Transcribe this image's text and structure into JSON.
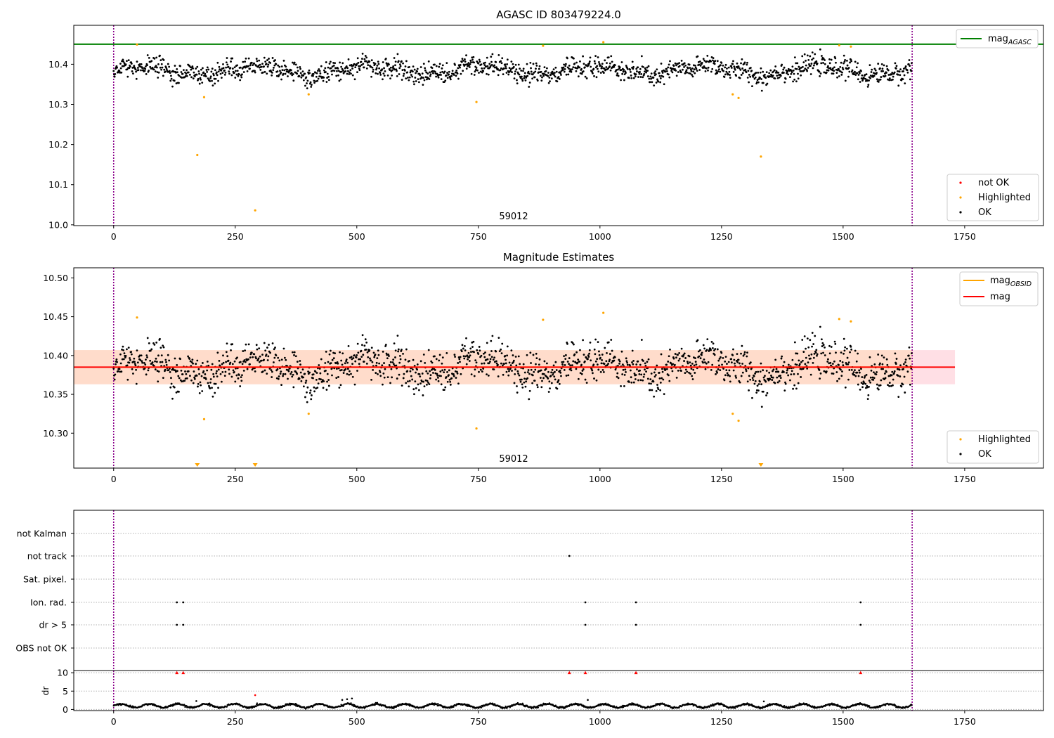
{
  "chart_data": [
    {
      "id": "agasc",
      "type": "scatter",
      "title": "AGASC ID 803479224.0",
      "xlim": [
        -82,
        1912
      ],
      "ylim": [
        9.998,
        10.497
      ],
      "xticks": [
        0,
        250,
        500,
        750,
        1000,
        1250,
        1500,
        1750
      ],
      "yticks": [
        10.0,
        10.1,
        10.2,
        10.3,
        10.4
      ],
      "ytick_labels": [
        "10.0",
        "10.1",
        "10.2",
        "10.3",
        "10.4"
      ],
      "vlines_x": [
        0,
        1642
      ],
      "vline_color": "#8b008b",
      "hline": {
        "y": 10.45,
        "color": "#008000",
        "label": "mag",
        "label_sub": "AGASC"
      },
      "annotation": {
        "text": "59012",
        "x": 821,
        "y": 10.018
      },
      "legend_upper": [
        {
          "label": "mag",
          "sub": "AGASC",
          "color": "#008000",
          "kind": "line"
        }
      ],
      "legend_lower": [
        {
          "label": "not OK",
          "color": "#ff0000",
          "kind": "dot"
        },
        {
          "label": "Highlighted",
          "color": "#ffa500",
          "kind": "dot"
        },
        {
          "label": "OK",
          "color": "#000000",
          "kind": "dot"
        }
      ],
      "series": {
        "ok": {
          "color": "#000000",
          "x_range": [
            0,
            1642
          ],
          "n": 1642,
          "center": 10.385,
          "spread": 0.022
        },
        "highlighted": {
          "color": "#ffa500",
          "x": [
            48,
            172,
            186,
            291,
            401,
            746,
            883,
            1007,
            1273,
            1285,
            1331,
            1492,
            1516
          ],
          "y": [
            10.449,
            10.174,
            10.318,
            10.036,
            10.325,
            10.306,
            10.446,
            10.455,
            10.325,
            10.316,
            10.17,
            10.447,
            10.444
          ]
        }
      }
    },
    {
      "id": "mag-estimates",
      "type": "scatter",
      "title": "Magnitude Estimates",
      "xlim": [
        -82,
        1912
      ],
      "ylim": [
        10.255,
        10.513
      ],
      "xticks": [
        0,
        250,
        500,
        750,
        1000,
        1250,
        1500,
        1750
      ],
      "yticks": [
        10.3,
        10.35,
        10.4,
        10.45,
        10.5
      ],
      "ytick_labels": [
        "10.30",
        "10.35",
        "10.40",
        "10.45",
        "10.50"
      ],
      "vlines_x": [
        0,
        1642
      ],
      "vline_color": "#8b008b",
      "mag_line": {
        "y": 10.385,
        "color": "#ff0000",
        "label": "mag"
      },
      "mag_band": {
        "y0": 10.363,
        "y1": 10.407,
        "x0": -82,
        "x1": 1730,
        "color": "#ffc0cb"
      },
      "obsid_band": {
        "y0": 10.363,
        "y1": 10.407,
        "x0": -82,
        "x1": 1642,
        "color": "#ffdab9"
      },
      "obsid_line": {
        "y": 10.385,
        "x0": 0,
        "x1": 1642,
        "color": "#ffa500",
        "label": "mag",
        "label_sub": "OBSID"
      },
      "annotation": {
        "text": "59012",
        "x": 821,
        "y": 10.265
      },
      "legend_upper": [
        {
          "label": "mag",
          "sub": "OBSID",
          "color": "#ffa500",
          "kind": "line"
        },
        {
          "label": "mag",
          "color": "#ff0000",
          "kind": "line"
        }
      ],
      "legend_lower": [
        {
          "label": "Highlighted",
          "color": "#ffa500",
          "kind": "dot"
        },
        {
          "label": "OK",
          "color": "#000000",
          "kind": "dot"
        }
      ],
      "series": {
        "ok": {
          "color": "#000000",
          "x_range": [
            0,
            1642
          ],
          "n": 1642,
          "center": 10.385,
          "spread": 0.022
        },
        "highlighted": {
          "color": "#ffa500",
          "x": [
            48,
            186,
            401,
            746,
            883,
            1007,
            1273,
            1285,
            1492,
            1516
          ],
          "y": [
            10.449,
            10.318,
            10.325,
            10.306,
            10.446,
            10.455,
            10.325,
            10.316,
            10.447,
            10.444
          ]
        },
        "off_scale": {
          "color": "#ffa500",
          "marker": "triangle-down",
          "x": [
            172,
            291,
            1331
          ]
        }
      }
    },
    {
      "id": "flags",
      "type": "scatter",
      "title": "",
      "xlim": [
        -82,
        1912
      ],
      "categories": [
        "not Kalman",
        "not track",
        "Sat. pixel.",
        "Ion. rad.",
        "dr > 5",
        "OBS not OK"
      ],
      "flag_points": [
        {
          "category": "not track",
          "x": [
            937
          ]
        },
        {
          "category": "Ion. rad.",
          "x": [
            130,
            143,
            970,
            1074,
            1536
          ]
        },
        {
          "category": "dr > 5",
          "x": [
            130,
            143,
            970,
            1074,
            1536
          ]
        }
      ],
      "vlines_x": [
        0,
        1642
      ],
      "vline_color": "#8b008b"
    },
    {
      "id": "dr",
      "type": "scatter",
      "title": "",
      "ylabel": "dr",
      "xlim": [
        -82,
        1912
      ],
      "ylim": [
        -0.3,
        10.6
      ],
      "xticks": [
        0,
        250,
        500,
        750,
        1000,
        1250,
        1500,
        1750
      ],
      "yticks": [
        0,
        5,
        10
      ],
      "ytick_labels": [
        "0",
        "5",
        "10"
      ],
      "vlines_x": [
        0,
        1642
      ],
      "vline_color": "#8b008b",
      "series": {
        "dr": {
          "color": "#000000",
          "x_range": [
            0,
            1642
          ],
          "n": 1642,
          "center": 1.0,
          "spread": 0.5
        },
        "outliers": {
          "color": "#000000",
          "x": [
            170,
            291,
            470,
            480,
            490,
            975,
            1337
          ],
          "y": [
            2.3,
            3.9,
            2.6,
            2.8,
            3.0,
            2.6,
            2.2
          ]
        },
        "clipped": {
          "color": "#ff0000",
          "marker": "triangle-up",
          "x": [
            130,
            143,
            937,
            970,
            1074,
            1536
          ]
        }
      }
    }
  ]
}
